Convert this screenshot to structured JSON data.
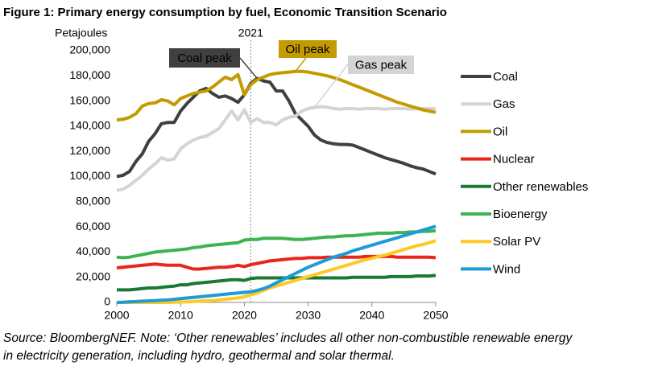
{
  "chart_data": {
    "type": "line",
    "title": "Figure 1: Primary energy consumption by fuel, Economic Transition Scenario",
    "y_label": "Petajoules",
    "note": [
      "Source: BloombergNEF. Note: ‘Other renewables’ includes all other non-combustible renewable energy",
      "in electricity generation, including hydro, geothermal and solar thermal."
    ],
    "x": [
      2000,
      2001,
      2002,
      2003,
      2004,
      2005,
      2006,
      2007,
      2008,
      2009,
      2010,
      2011,
      2012,
      2013,
      2014,
      2015,
      2016,
      2017,
      2018,
      2019,
      2020,
      2021,
      2022,
      2023,
      2024,
      2025,
      2026,
      2027,
      2028,
      2029,
      2030,
      2031,
      2032,
      2033,
      2034,
      2035,
      2036,
      2037,
      2038,
      2039,
      2040,
      2041,
      2042,
      2043,
      2044,
      2045,
      2046,
      2047,
      2048,
      2049,
      2050
    ],
    "xlim": [
      2000,
      2050
    ],
    "xticks": [
      2000,
      2010,
      2020,
      2030,
      2040,
      2050
    ],
    "ylim": [
      0,
      200000
    ],
    "yticks": [
      0,
      {
        "value": 20000,
        "label": "20,000"
      },
      {
        "value": 40000,
        "label": "40,000"
      },
      {
        "value": 60000,
        "label": "60,000"
      },
      {
        "value": 80000,
        "label": "80,000"
      },
      {
        "value": 100000,
        "label": "100,000"
      },
      {
        "value": 120000,
        "label": "120,000"
      },
      {
        "value": 140000,
        "label": "140,000"
      },
      {
        "value": 160000,
        "label": "160,000"
      },
      {
        "value": 180000,
        "label": "180,000"
      },
      {
        "value": 200000,
        "label": "200,000"
      }
    ],
    "grid": false,
    "legend": "right",
    "vline": {
      "x": 2021,
      "label": "2021"
    },
    "annotations": [
      {
        "text": "Coal peak",
        "x": 2022,
        "y": 178000,
        "color": "#404040",
        "text_color": "#ffffff"
      },
      {
        "text": "Oil peak",
        "x": 2028,
        "y": 183500,
        "color": "#c39a00",
        "text_color": "#ffffff"
      },
      {
        "text": "Gas peak",
        "x": 2031,
        "y": 155000,
        "color": "#d4d4d4",
        "text_color": "#000000"
      }
    ],
    "series": [
      {
        "name": "Coal",
        "color": "#404040",
        "values": [
          100000,
          101000,
          104000,
          112000,
          118000,
          128000,
          134000,
          142000,
          143000,
          143000,
          152000,
          158000,
          163000,
          168000,
          170000,
          166000,
          163000,
          164000,
          162000,
          159000,
          165000,
          174000,
          178000,
          176000,
          175000,
          168000,
          168000,
          160000,
          150000,
          145000,
          140000,
          133000,
          129000,
          127000,
          126000,
          125500,
          125500,
          125000,
          123000,
          121000,
          119000,
          117000,
          115000,
          113500,
          112000,
          110500,
          108500,
          107000,
          106000,
          104000,
          102000
        ]
      },
      {
        "name": "Gas",
        "color": "#d4d4d4",
        "values": [
          89000,
          90000,
          93000,
          97000,
          101000,
          106000,
          110000,
          115000,
          113000,
          114000,
          122000,
          126000,
          129000,
          131000,
          132000,
          135000,
          138000,
          145000,
          152000,
          145000,
          153000,
          143000,
          146000,
          143000,
          143000,
          141000,
          145000,
          147000,
          148000,
          152000,
          154000,
          155000,
          155500,
          155000,
          154000,
          153500,
          154000,
          154000,
          153500,
          154000,
          154000,
          154000,
          153500,
          154000,
          154000,
          154000,
          153500,
          154000,
          154000,
          154000,
          154000
        ]
      },
      {
        "name": "Oil",
        "color": "#c39a00",
        "values": [
          145000,
          145500,
          147000,
          150000,
          156000,
          158000,
          158500,
          161000,
          160000,
          157000,
          162000,
          164000,
          166000,
          167000,
          168000,
          171000,
          175000,
          179000,
          177000,
          181000,
          165000,
          173000,
          177000,
          179000,
          181000,
          182000,
          182500,
          183000,
          183500,
          183500,
          183000,
          182000,
          181000,
          180000,
          178500,
          177000,
          175000,
          173000,
          171000,
          169000,
          167000,
          165000,
          163000,
          161000,
          159000,
          157500,
          156000,
          154500,
          153000,
          152000,
          151000
        ]
      },
      {
        "name": "Nuclear",
        "color": "#e8261c",
        "values": [
          27500,
          28000,
          28500,
          29000,
          29500,
          30000,
          30500,
          30000,
          29500,
          29500,
          29500,
          28000,
          26500,
          26500,
          27000,
          27500,
          28000,
          28000,
          28500,
          29500,
          28500,
          30000,
          31000,
          32000,
          33000,
          33500,
          34000,
          34500,
          35000,
          35000,
          35500,
          35500,
          35500,
          36000,
          36000,
          36000,
          36000,
          36000,
          36000,
          36500,
          36500,
          36500,
          36500,
          36500,
          36000,
          36000,
          36000,
          36000,
          36000,
          36000,
          35500
        ]
      },
      {
        "name": "Other renewables",
        "color": "#1a7a34",
        "values": [
          10000,
          10000,
          10000,
          10500,
          11000,
          11500,
          11500,
          12000,
          12500,
          13000,
          14000,
          14000,
          15000,
          15500,
          16000,
          16500,
          17000,
          17500,
          18000,
          18000,
          17500,
          19000,
          19500,
          19500,
          19500,
          19500,
          19500,
          19500,
          19500,
          19500,
          19500,
          19500,
          19500,
          19500,
          19500,
          19500,
          19500,
          20000,
          20000,
          20000,
          20000,
          20000,
          20000,
          20500,
          20500,
          20500,
          20500,
          21000,
          21000,
          21000,
          21500
        ]
      },
      {
        "name": "Bioenergy",
        "color": "#3cb550",
        "values": [
          36000,
          35500,
          36000,
          37000,
          38000,
          39000,
          40000,
          40500,
          41000,
          41500,
          42000,
          42500,
          43500,
          44000,
          45000,
          45500,
          46000,
          46500,
          47000,
          47500,
          49500,
          50000,
          50000,
          51000,
          51000,
          51000,
          51000,
          50500,
          50000,
          50000,
          50500,
          51000,
          51500,
          52000,
          52000,
          52500,
          53000,
          53000,
          53500,
          54000,
          54500,
          55000,
          55000,
          55000,
          55500,
          55500,
          56000,
          56000,
          56500,
          56500,
          57000
        ]
      },
      {
        "name": "Solar PV",
        "color": "#ffc823",
        "values": [
          0,
          0,
          0,
          0,
          0,
          0,
          0,
          0,
          0,
          200,
          300,
          500,
          700,
          1000,
          1200,
          1500,
          2000,
          2500,
          3000,
          3500,
          4500,
          6000,
          7500,
          9500,
          11500,
          13000,
          14500,
          16000,
          17500,
          19000,
          20500,
          22000,
          23500,
          25000,
          26500,
          28000,
          29500,
          31000,
          32500,
          34000,
          35000,
          36500,
          37500,
          39000,
          40500,
          42000,
          43500,
          45000,
          46000,
          47500,
          49000
        ]
      },
      {
        "name": "Wind",
        "color": "#1e9bd7",
        "values": [
          0,
          200,
          500,
          700,
          1000,
          1200,
          1500,
          1700,
          2000,
          2500,
          3000,
          3500,
          4000,
          4500,
          5000,
          5500,
          6000,
          6500,
          7000,
          7500,
          8000,
          8500,
          9500,
          11000,
          13000,
          15500,
          18000,
          20500,
          23000,
          25500,
          28000,
          30000,
          32000,
          34000,
          36000,
          37500,
          39000,
          41000,
          42500,
          44000,
          45500,
          47000,
          48500,
          50000,
          51500,
          53000,
          54500,
          56000,
          57500,
          59000,
          60500
        ]
      }
    ]
  }
}
